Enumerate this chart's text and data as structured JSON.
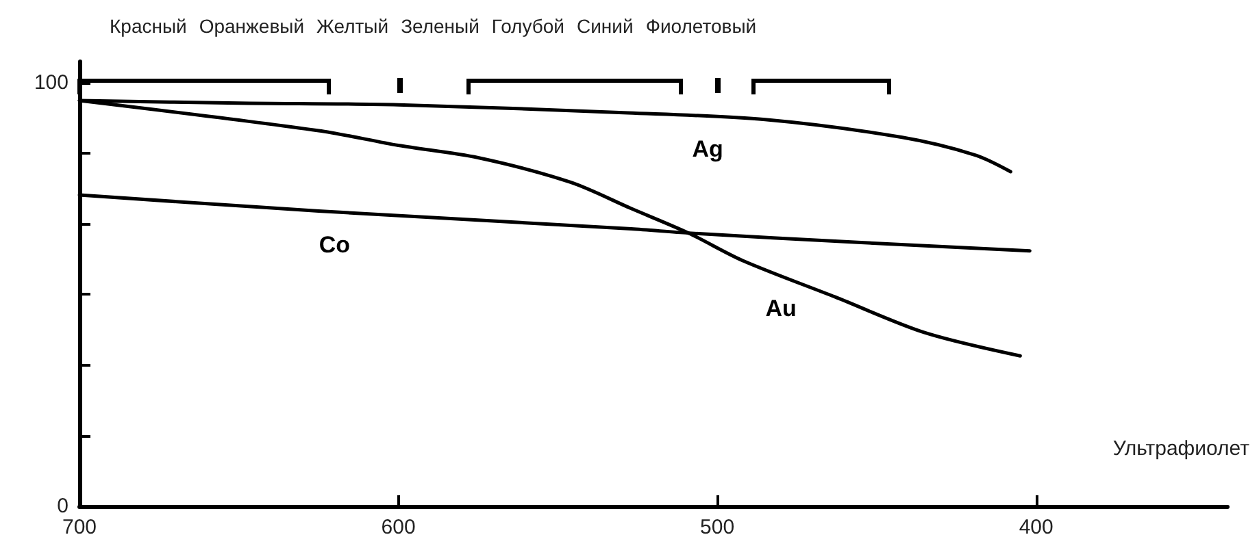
{
  "chart_data": {
    "type": "line",
    "xlabel": "Ультрафиолет",
    "xlim": [
      700,
      340
    ],
    "xticks": [
      700,
      600,
      500,
      400
    ],
    "ylim": [
      0,
      105
    ],
    "yticks": [
      0,
      {
        "value": 16.67,
        "label": null
      },
      {
        "value": 33.33,
        "label": null
      },
      {
        "value": 50,
        "label": null
      },
      {
        "value": 66.67,
        "label": null
      },
      {
        "value": 83.33,
        "label": null
      },
      100
    ],
    "grid": false,
    "marker": "none",
    "line_style": "solid",
    "series": [
      {
        "color": "#000000",
        "x": [
          700,
          650,
          600,
          528,
          485,
          442,
          419,
          408
        ],
        "values": [
          95.8,
          95.2,
          94.8,
          92.9,
          91.3,
          87.1,
          82.9,
          79
        ]
      },
      {
        "color": "#000000",
        "x": [
          700,
          625,
          600,
          575,
          546,
          527,
          509,
          492,
          463,
          435,
          405
        ],
        "values": [
          95.8,
          88.7,
          85.2,
          82.3,
          76.5,
          70.3,
          64.5,
          58,
          49.4,
          41,
          35.5
        ]
      },
      {
        "color": "#000000",
        "x": [
          700,
          625,
          527,
          509,
          456,
          402
        ],
        "values": [
          73.5,
          69.7,
          65.5,
          64.5,
          62.3,
          60.3
        ]
      }
    ],
    "annotations": [
      "Красный",
      "Оранжевый",
      "Желтый",
      "Зеленый",
      "Голубой",
      "Синий",
      "Фиолетовый",
      {
        "text": "Ag",
        "x": 503,
        "y": 92
      },
      {
        "text": "Co",
        "x": 620,
        "y": 69.4
      },
      {
        "text": "Au",
        "x": 480,
        "y": 54.5
      }
    ]
  }
}
